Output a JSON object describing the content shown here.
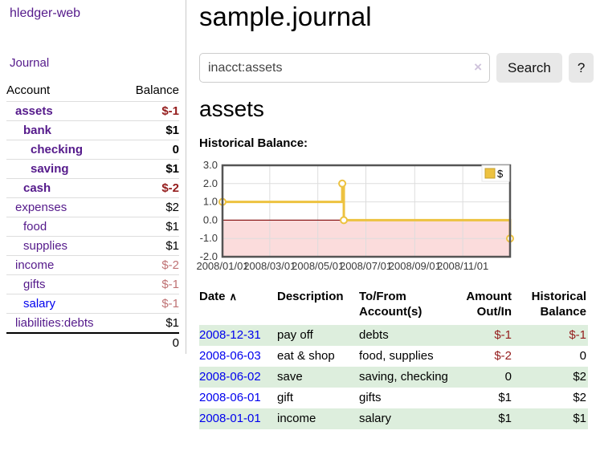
{
  "app": {
    "brand": "hledger-web",
    "nav": "Journal"
  },
  "icons": {
    "sort_asc": "∧",
    "clear": "×"
  },
  "sidebar": {
    "headers": [
      "Account",
      "Balance"
    ],
    "accounts": [
      {
        "name": "assets",
        "balance": "$-1"
      },
      {
        "name": "bank",
        "balance": "$1"
      },
      {
        "name": "checking",
        "balance": "0"
      },
      {
        "name": "saving",
        "balance": "$1"
      },
      {
        "name": "cash",
        "balance": "$-2"
      },
      {
        "name": "expenses",
        "balance": "$2"
      },
      {
        "name": "food",
        "balance": "$1"
      },
      {
        "name": "supplies",
        "balance": "$1"
      },
      {
        "name": "income",
        "balance": "$-2"
      },
      {
        "name": "gifts",
        "balance": "$-1"
      },
      {
        "name": "salary",
        "balance": "$-1"
      },
      {
        "name": "liabilities:debts",
        "balance": "$1"
      }
    ],
    "total": "0"
  },
  "main": {
    "title": "sample.journal",
    "search": {
      "value": "inacct:assets",
      "button": "Search",
      "help": "?"
    },
    "account_heading": "assets",
    "section_label": "Historical Balance:"
  },
  "chart_data": {
    "type": "line",
    "title": "Historical Balance:",
    "legend": "$",
    "legend_position": "top-right",
    "step": true,
    "series": [
      {
        "name": "$",
        "points": [
          [
            "2008-01-01",
            1.0
          ],
          [
            "2008-06-01",
            2.0
          ],
          [
            "2008-06-03",
            0.0
          ],
          [
            "2008-12-31",
            -1.0
          ]
        ]
      }
    ],
    "xlabel": "",
    "ylabel": "",
    "xlim": [
      "2008-01-01",
      "2008-12-31"
    ],
    "ylim": [
      -2.0,
      3.0
    ],
    "yticks": [
      3,
      2,
      1,
      0,
      -1,
      -2
    ],
    "xticks": [
      {
        "pos": "2008-01-01",
        "label": "2008/01/01"
      },
      {
        "pos": "2008-03-01",
        "label": "2008/03/01"
      },
      {
        "pos": "2008-05-01",
        "label": "2008/05/01"
      },
      {
        "pos": "2008-07-01",
        "label": "2008/07/01"
      },
      {
        "pos": "2008-09-01",
        "label": "2008/09/01"
      },
      {
        "pos": "2008-11-01",
        "label": "2008/11/01"
      }
    ],
    "grid": true,
    "colors": {
      "line": "#edc240",
      "marker_fill": "#ffffff",
      "negative_region": "#fbdcdc",
      "zero_line": "#8b1a1a",
      "grid": "#dddddd",
      "border": "#545454"
    }
  },
  "transactions": {
    "headers": [
      "Date",
      "Description",
      "To/From Account(s)",
      "Amount Out/In",
      "Historical Balance"
    ],
    "rows": [
      {
        "date": "2008-12-31",
        "description": "pay off",
        "accounts": "debts",
        "amount": "$-1",
        "balance": "$-1"
      },
      {
        "date": "2008-06-03",
        "description": "eat & shop",
        "accounts": "food, supplies",
        "amount": "$-2",
        "balance": "0"
      },
      {
        "date": "2008-06-02",
        "description": "save",
        "accounts": "saving, checking",
        "amount": "0",
        "balance": "$2"
      },
      {
        "date": "2008-06-01",
        "description": "gift",
        "accounts": "gifts",
        "amount": "$1",
        "balance": "$2"
      },
      {
        "date": "2008-01-01",
        "description": "income",
        "accounts": "salary",
        "amount": "$1",
        "balance": "$1"
      }
    ]
  }
}
